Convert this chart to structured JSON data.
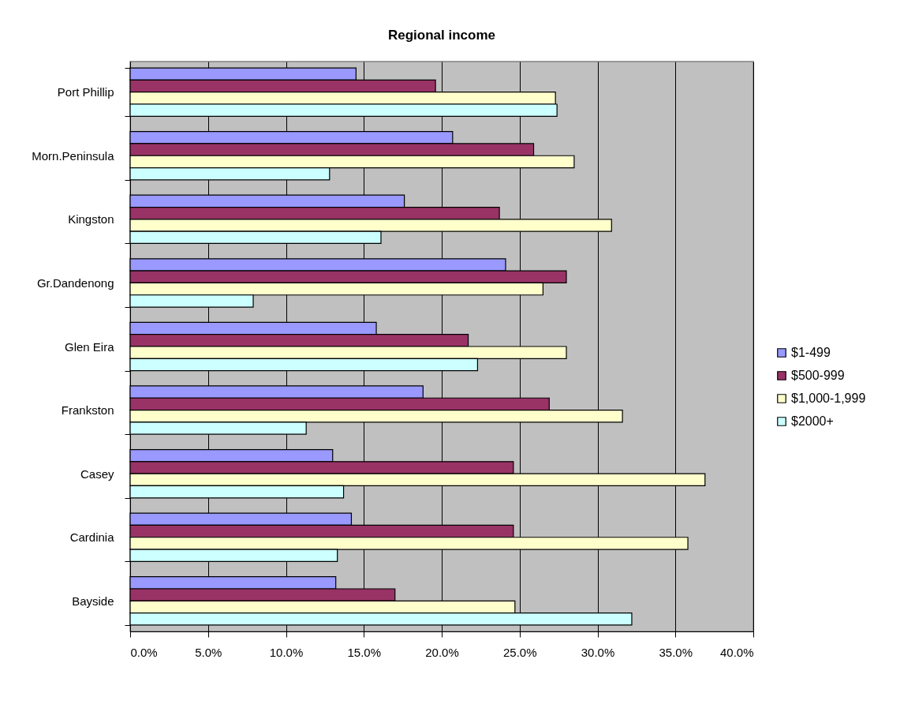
{
  "chart_data": {
    "type": "bar",
    "orientation": "horizontal",
    "title": "Regional income",
    "categories": [
      "Port Phillip",
      "Morn.Peninsula",
      "Kingston",
      "Gr.Dandenong",
      "Glen Eira",
      "Frankston",
      "Casey",
      "Cardinia",
      "Bayside"
    ],
    "series": [
      {
        "name": "$1-499",
        "color": "#9999ff",
        "values": [
          14.5,
          20.7,
          17.6,
          24.1,
          15.8,
          18.8,
          13.0,
          14.2,
          13.2
        ]
      },
      {
        "name": "$500-999",
        "color": "#993366",
        "values": [
          19.6,
          25.9,
          23.7,
          28.0,
          21.7,
          26.9,
          24.6,
          24.6,
          17.0
        ]
      },
      {
        "name": "$1,000-1,999",
        "color": "#ffffcc",
        "values": [
          27.3,
          28.5,
          30.9,
          26.5,
          28.0,
          31.6,
          36.9,
          35.8,
          24.7
        ]
      },
      {
        "name": "$2000+",
        "color": "#ccffff",
        "values": [
          27.4,
          12.8,
          16.1,
          7.9,
          22.3,
          11.3,
          13.7,
          13.3,
          32.2
        ]
      }
    ],
    "xlim": [
      0,
      40
    ],
    "xticks": [
      {
        "value": 0,
        "label": "0.0%"
      },
      {
        "value": 5,
        "label": "5.0%"
      },
      {
        "value": 10,
        "label": "10.0%"
      },
      {
        "value": 15,
        "label": "15.0%"
      },
      {
        "value": 20,
        "label": "20.0%"
      },
      {
        "value": 25,
        "label": "25.0%"
      },
      {
        "value": 30,
        "label": "30.0%"
      },
      {
        "value": 35,
        "label": "35.0%"
      },
      {
        "value": 40,
        "label": "40.0%"
      }
    ],
    "grid": "x",
    "legend": "right"
  }
}
